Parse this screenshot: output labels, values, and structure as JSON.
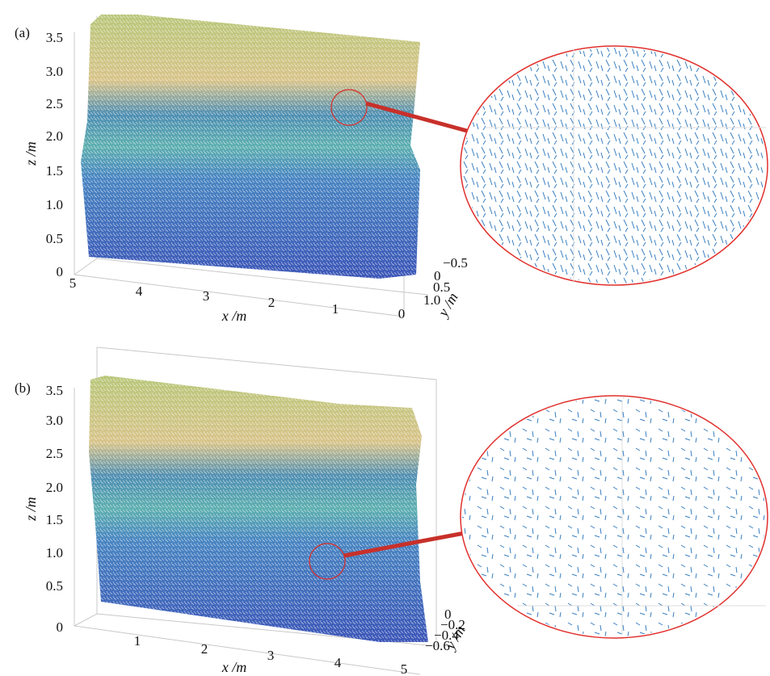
{
  "panels": [
    {
      "label": "(a)",
      "z_axis": {
        "label": "z /m",
        "ticks": [
          "3.5",
          "3.0",
          "2.5",
          "2.0",
          "1.5",
          "1.0",
          "0.5",
          "0"
        ]
      },
      "x_axis": {
        "label": "x /m",
        "ticks": [
          "5",
          "4",
          "3",
          "2",
          "1",
          "0"
        ]
      },
      "y_axis": {
        "label": "y /m",
        "ticks": [
          "−0.5",
          "0",
          "0.5",
          "1.0"
        ]
      }
    },
    {
      "label": "(b)",
      "z_axis": {
        "label": "z /m",
        "ticks": [
          "3.5",
          "3.0",
          "2.5",
          "2.0",
          "1.5",
          "1.0",
          "0.5",
          "0"
        ]
      },
      "x_axis": {
        "label": "x /m",
        "ticks": [
          "1",
          "2",
          "3",
          "4",
          "5"
        ]
      },
      "y_axis": {
        "label": "y /m",
        "ticks": [
          "0",
          "−0.2",
          "−0.4",
          "−0.6"
        ]
      }
    }
  ]
}
